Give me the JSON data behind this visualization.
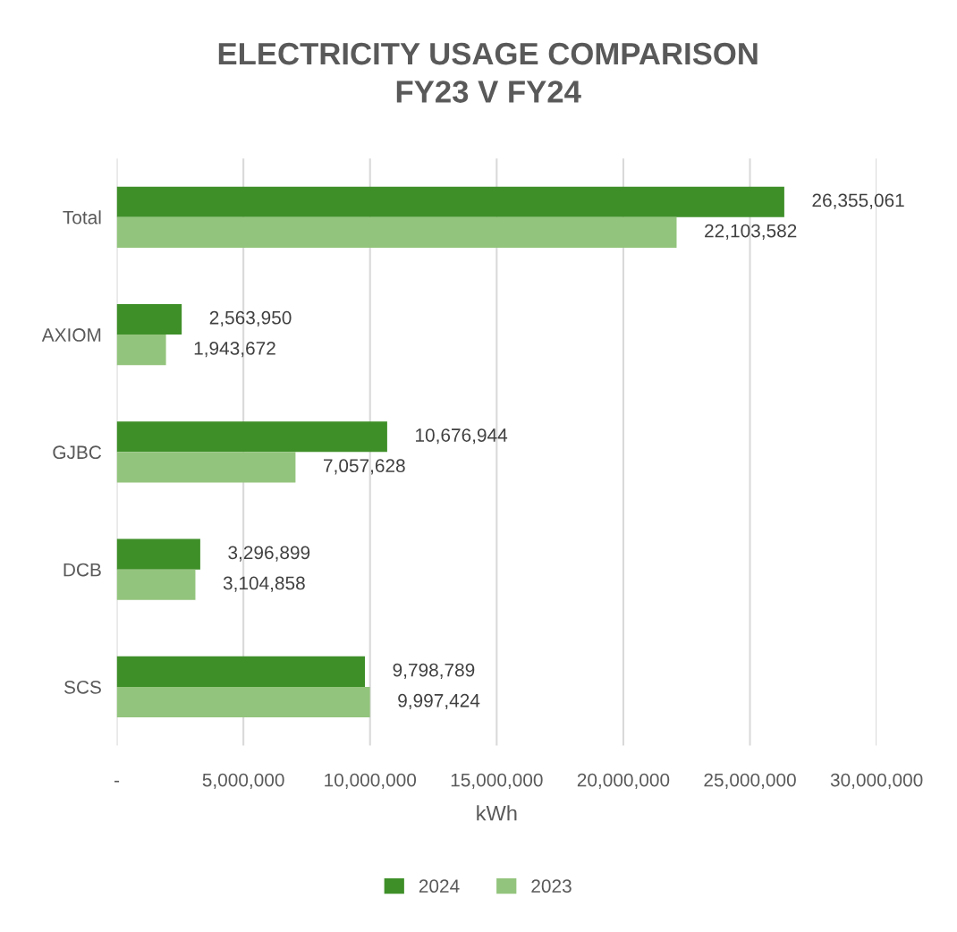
{
  "chart_data": {
    "type": "bar",
    "orientation": "horizontal",
    "title": "ELECTRICITY USAGE COMPARISON\nFY23 V FY24",
    "xlabel": "kWh",
    "categories": [
      "Total",
      "AXIOM",
      "GJBC",
      "DCB",
      "SCS"
    ],
    "series": [
      {
        "name": "2024",
        "color": "#3f8f29",
        "values": [
          26355061,
          2563950,
          10676944,
          3296899,
          9798789
        ],
        "value_labels": [
          "26,355,061",
          "2,563,950",
          "10,676,944",
          "3,296,899",
          "9,798,789"
        ]
      },
      {
        "name": "2023",
        "color": "#93c47d",
        "values": [
          22103582,
          1943672,
          7057628,
          3104858,
          9997424
        ],
        "value_labels": [
          "22,103,582",
          "1,943,672",
          "7,057,628",
          "3,104,858",
          "9,997,424"
        ]
      }
    ],
    "xlim": [
      0,
      30000000
    ],
    "xticks": [
      {
        "value": 0,
        "label": "-"
      },
      {
        "value": 5000000,
        "label": "5,000,000"
      },
      {
        "value": 10000000,
        "label": "10,000,000"
      },
      {
        "value": 15000000,
        "label": "15,000,000"
      },
      {
        "value": 20000000,
        "label": "20,000,000"
      },
      {
        "value": 25000000,
        "label": "25,000,000"
      },
      {
        "value": 30000000,
        "label": "30,000,000"
      }
    ],
    "grid": "x",
    "legend": "bottom"
  }
}
